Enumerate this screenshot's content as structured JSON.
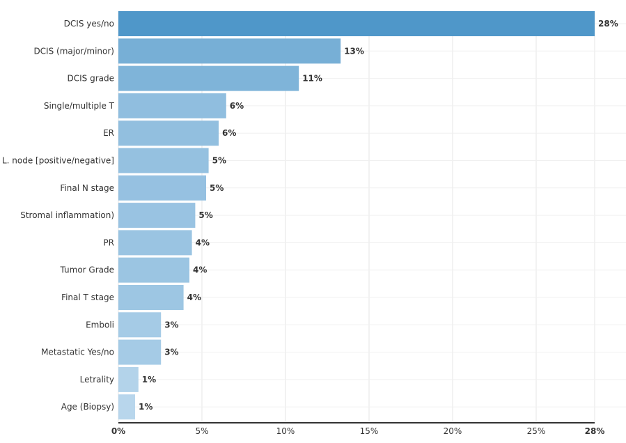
{
  "chart_data": {
    "type": "bar",
    "orientation": "horizontal",
    "categories": [
      "DCIS yes/no",
      "DCIS (major/minor)",
      "DCIS grade",
      "Single/multiple T",
      "ER",
      "L. node [positive/negative]",
      "Final N stage",
      "Stromal inflammation)",
      "PR",
      "Tumor Grade",
      "Final T stage",
      "Emboli",
      "Metastatic Yes/no",
      "Letrality",
      "Age (Biopsy)"
    ],
    "values": [
      28.5,
      13.3,
      10.8,
      6.45,
      6.0,
      5.4,
      5.25,
      4.6,
      4.4,
      4.25,
      3.9,
      2.55,
      2.55,
      1.2,
      1.0
    ],
    "data_labels": [
      "28%",
      "13%",
      "11%",
      "6%",
      "6%",
      "5%",
      "5%",
      "5%",
      "4%",
      "4%",
      "4%",
      "3%",
      "3%",
      "1%",
      "1%"
    ],
    "xlim": [
      0,
      28.5
    ],
    "x_ticks": [
      0,
      5,
      10,
      15,
      20,
      25,
      28.5
    ],
    "x_tick_labels": [
      "0%",
      "5%",
      "10%",
      "15%",
      "20%",
      "25%",
      "28%"
    ],
    "title": "",
    "xlabel": "",
    "ylabel": "",
    "grid": true,
    "legend": "none",
    "colors": {
      "bar_max": "#4f97c9",
      "bar_min": "#b8d6ec",
      "grid": "#e6e6e6",
      "axis": "#333333",
      "text": "#333333"
    }
  }
}
